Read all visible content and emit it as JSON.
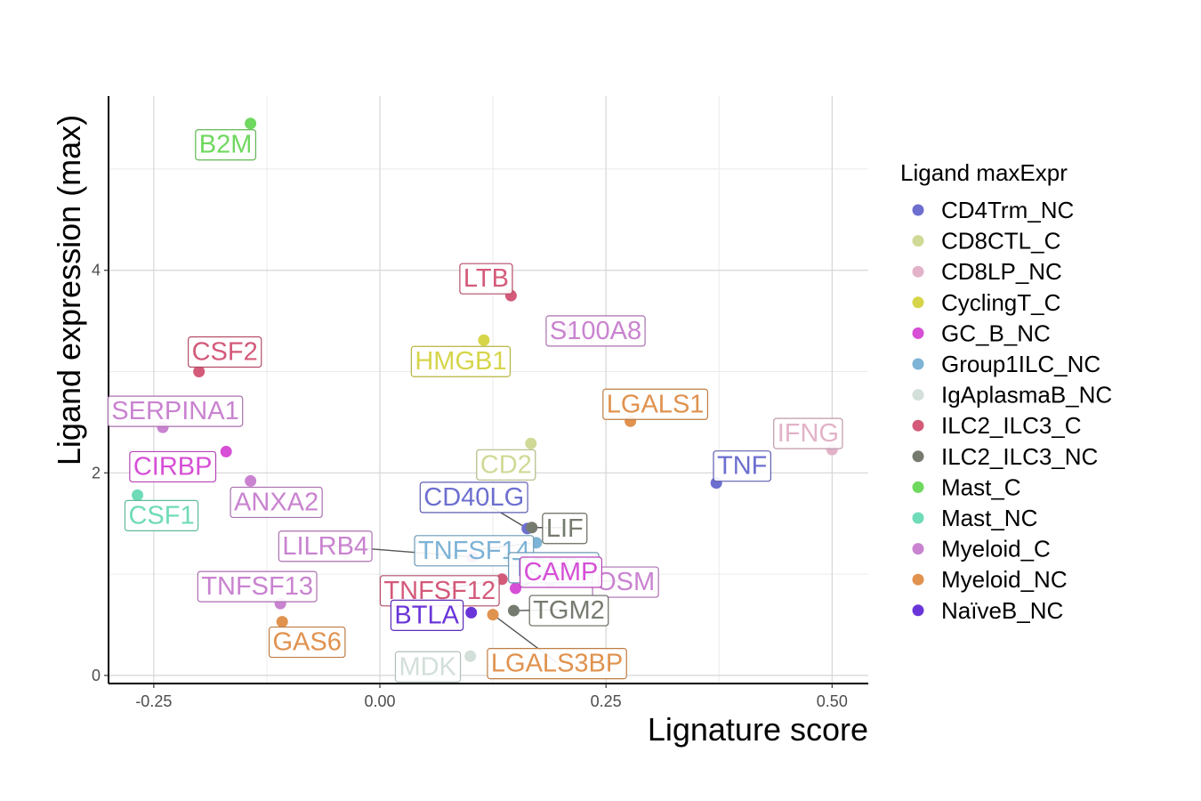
{
  "chart_data": {
    "type": "scatter",
    "xlabel": "Lignature score",
    "ylabel": "Ligand expression (max)",
    "xlim": [
      -0.3,
      0.54
    ],
    "ylim": [
      -0.08,
      5.72
    ],
    "xticks": [
      -0.25,
      0.0,
      0.25,
      0.5
    ],
    "xtick_labels": [
      "-0.25",
      "0.00",
      "0.25",
      "0.50"
    ],
    "yticks": [
      0,
      2,
      4
    ],
    "ytick_labels": [
      "0",
      "2",
      "4"
    ],
    "grid": true,
    "legend": {
      "title": "Ligand maxExpr",
      "position": "right",
      "entries": [
        {
          "name": "CD4Trm_NC",
          "color": "#6c6fcf"
        },
        {
          "name": "CD8CTL_C",
          "color": "#d1d996"
        },
        {
          "name": "CD8LP_NC",
          "color": "#e2b3c8"
        },
        {
          "name": "CyclingT_C",
          "color": "#d6d54a"
        },
        {
          "name": "GC_B_NC",
          "color": "#d64fd6"
        },
        {
          "name": "Group1ILC_NC",
          "color": "#7db3d6"
        },
        {
          "name": "IgAplasmaB_NC",
          "color": "#d3dfd9"
        },
        {
          "name": "ILC2_ILC3_C",
          "color": "#d45a7a"
        },
        {
          "name": "ILC2_ILC3_NC",
          "color": "#767b6f"
        },
        {
          "name": "Mast_C",
          "color": "#6fd85f"
        },
        {
          "name": "Mast_NC",
          "color": "#6fdbb8"
        },
        {
          "name": "Myeloid_C",
          "color": "#c983d0"
        },
        {
          "name": "Myeloid_NC",
          "color": "#e0924f"
        },
        {
          "name": "NaïveB_NC",
          "color": "#6a35d8"
        }
      ]
    },
    "points": [
      {
        "label": "B2M",
        "x": -0.143,
        "y": 5.45,
        "group": "Mast_C"
      },
      {
        "label": "LTB",
        "x": 0.145,
        "y": 3.75,
        "group": "ILC2_ILC3_C"
      },
      {
        "label": "S100A8",
        "x": 0.21,
        "y": 3.41,
        "group": "Myeloid_C"
      },
      {
        "label": "HMGB1",
        "x": 0.115,
        "y": 3.31,
        "group": "CyclingT_C"
      },
      {
        "label": "CSF2",
        "x": -0.2,
        "y": 3.0,
        "group": "ILC2_ILC3_C"
      },
      {
        "label": "LGALS1",
        "x": 0.277,
        "y": 2.51,
        "group": "Myeloid_NC"
      },
      {
        "label": "SERPINA1",
        "x": -0.24,
        "y": 2.45,
        "group": "Myeloid_C"
      },
      {
        "label": "IFNG",
        "x": 0.5,
        "y": 2.23,
        "group": "CD8LP_NC"
      },
      {
        "label": "CD2",
        "x": 0.167,
        "y": 2.29,
        "group": "CD8CTL_C"
      },
      {
        "label": "CIRBP",
        "x": -0.17,
        "y": 2.21,
        "group": "GC_B_NC"
      },
      {
        "label": "TNF",
        "x": 0.372,
        "y": 1.9,
        "group": "CD4Trm_NC"
      },
      {
        "label": "ANXA2",
        "x": -0.143,
        "y": 1.92,
        "group": "Myeloid_C"
      },
      {
        "label": "CSF1",
        "x": -0.268,
        "y": 1.78,
        "group": "Mast_NC"
      },
      {
        "label": "CD40LG",
        "x": 0.163,
        "y": 1.45,
        "group": "CD4Trm_NC"
      },
      {
        "label": "LIF",
        "x": 0.168,
        "y": 1.46,
        "group": "ILC2_ILC3_NC"
      },
      {
        "label": "TNFSF14",
        "x": 0.173,
        "y": 1.31,
        "group": "Group1ILC_NC"
      },
      {
        "label": "LILRB4",
        "x": 0.102,
        "y": 1.17,
        "group": "Myeloid_C"
      },
      {
        "label": "TGFB1",
        "x": 0.143,
        "y": 1.16,
        "group": "Group1ILC_NC"
      },
      {
        "label": "TNFSF12",
        "x": 0.135,
        "y": 0.95,
        "group": "ILC2_ILC3_C"
      },
      {
        "label": "OSM",
        "x": 0.188,
        "y": 0.93,
        "group": "Myeloid_C"
      },
      {
        "label": "CAMP",
        "x": 0.15,
        "y": 0.86,
        "group": "GC_B_NC"
      },
      {
        "label": "TNFSF13",
        "x": -0.11,
        "y": 0.71,
        "group": "Myeloid_C"
      },
      {
        "label": "BTLA",
        "x": 0.101,
        "y": 0.62,
        "group": "NaïveB_NC"
      },
      {
        "label": "TGM2",
        "x": 0.148,
        "y": 0.64,
        "group": "ILC2_ILC3_NC"
      },
      {
        "label": "GAS6",
        "x": -0.108,
        "y": 0.53,
        "group": "Myeloid_NC"
      },
      {
        "label": "LGALS3BP",
        "x": 0.125,
        "y": 0.6,
        "group": "Myeloid_NC"
      },
      {
        "label": "MDK",
        "x": 0.1,
        "y": 0.19,
        "group": "IgAplasmaB_NC"
      }
    ]
  }
}
